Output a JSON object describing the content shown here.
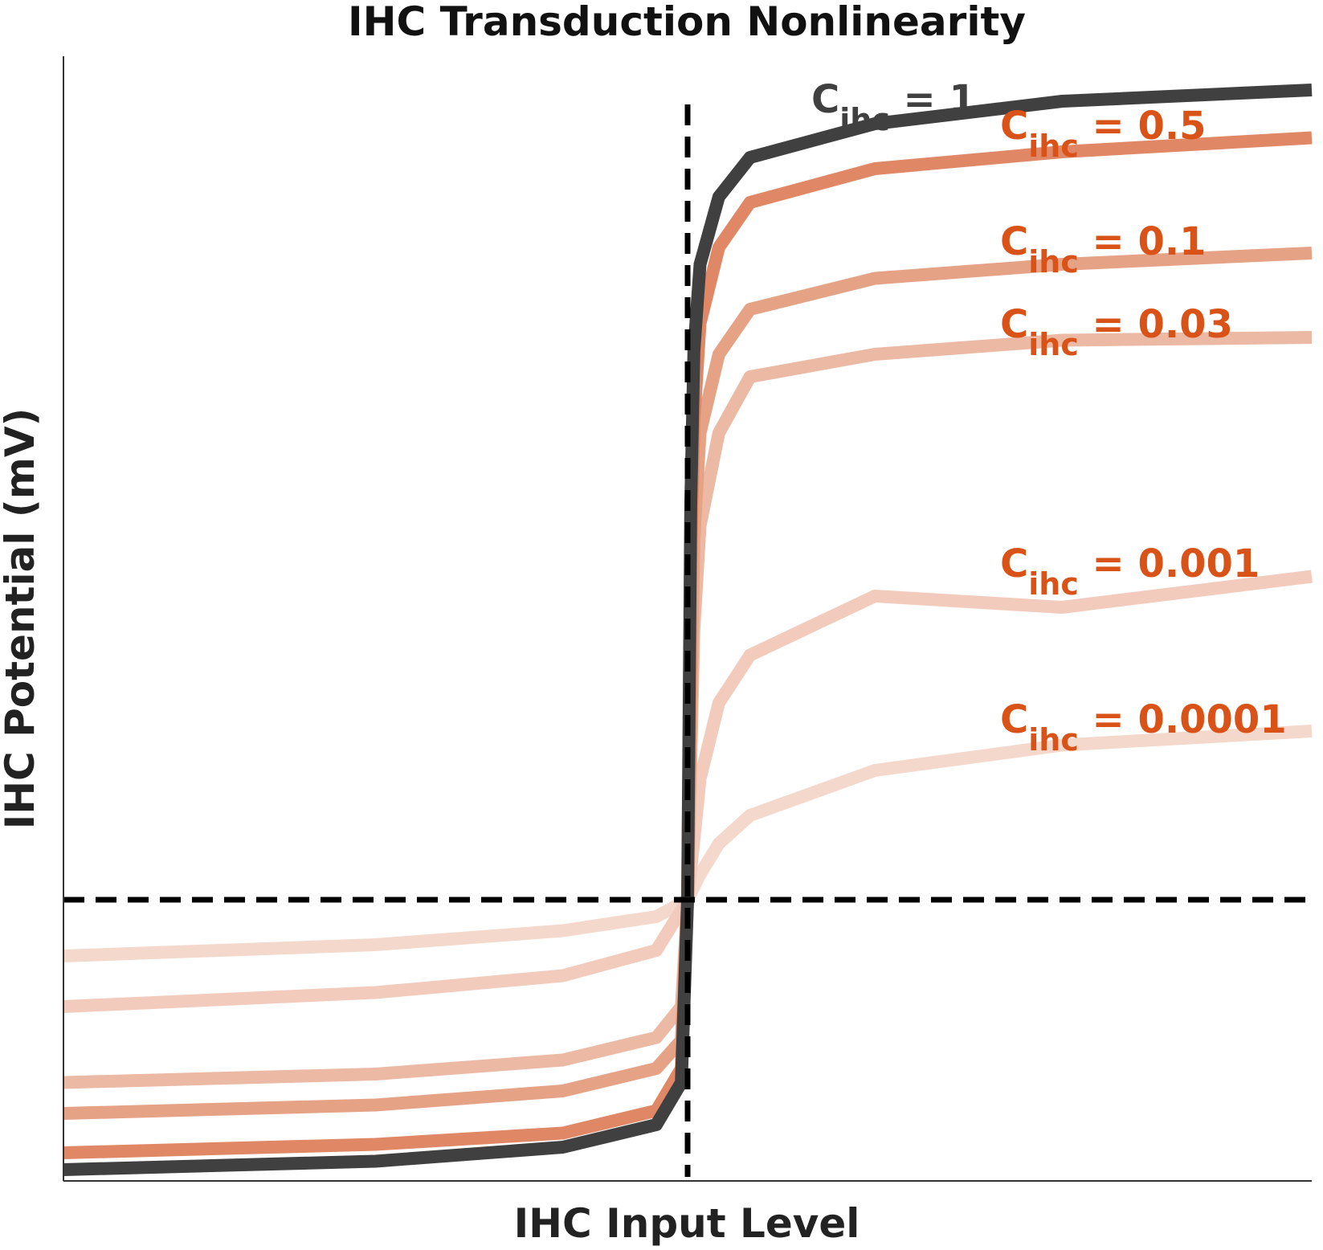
{
  "chart_data": {
    "type": "line",
    "title": "IHC Transduction Nonlinearity",
    "xlabel": "IHC Input Level",
    "ylabel": "IHC Potential (mV)",
    "xlim": [
      -1,
      1
    ],
    "ylim": [
      -1,
      3
    ],
    "x_ticks_shown": false,
    "y_ticks_shown": false,
    "grid": false,
    "reference_lines": [
      {
        "orientation": "vertical",
        "value": 0,
        "style": "dashed",
        "color": "#000000"
      },
      {
        "orientation": "horizontal",
        "value": 0,
        "style": "dashed",
        "color": "#000000"
      }
    ],
    "series": [
      {
        "label_main": "C",
        "label_sub": "ihc",
        "label_value": "= 0.0001",
        "color": "#f4d8cc",
        "label_color": "#d95319",
        "param": 0.0001,
        "x": [
          -1,
          -0.5,
          -0.2,
          -0.05,
          0,
          0.02,
          0.05,
          0.1,
          0.3,
          0.6,
          1
        ],
        "y": [
          -0.2,
          -0.16,
          -0.11,
          -0.06,
          0,
          0.09,
          0.2,
          0.3,
          0.46,
          0.55,
          0.6
        ]
      },
      {
        "label_main": "C",
        "label_sub": "ihc",
        "label_value": "= 0.001",
        "color": "#f2cbbd",
        "label_color": "#d95319",
        "param": 0.001,
        "x": [
          -1,
          -0.5,
          -0.2,
          -0.05,
          0,
          0.01,
          0.02,
          0.05,
          0.1,
          0.3,
          0.6,
          1
        ],
        "y": [
          -0.38,
          -0.33,
          -0.27,
          -0.18,
          0,
          0.21,
          0.43,
          0.7,
          0.87,
          1.08,
          1.04,
          1.15
        ]
      },
      {
        "label_main": "C",
        "label_sub": "ihc",
        "label_value": "= 0.03",
        "color": "#ebb9a4",
        "label_color": "#d95319",
        "param": 0.03,
        "x": [
          -1,
          -0.5,
          -0.2,
          -0.05,
          -0.01,
          0,
          0.01,
          0.02,
          0.05,
          0.1,
          0.3,
          0.6,
          1
        ],
        "y": [
          -0.65,
          -0.62,
          -0.57,
          -0.49,
          -0.38,
          0,
          0.96,
          1.33,
          1.66,
          1.86,
          1.94,
          1.99,
          2.0
        ]
      },
      {
        "label_main": "C",
        "label_sub": "ihc",
        "label_value": "= 0.1",
        "color": "#e6a285",
        "label_color": "#d95319",
        "param": 0.1,
        "x": [
          -1,
          -0.5,
          -0.2,
          -0.05,
          -0.01,
          0,
          0.01,
          0.02,
          0.05,
          0.1,
          0.3,
          0.6,
          1
        ],
        "y": [
          -0.76,
          -0.73,
          -0.68,
          -0.6,
          -0.5,
          0,
          1.28,
          1.66,
          1.94,
          2.1,
          2.21,
          2.26,
          2.3
        ]
      },
      {
        "label_main": "C",
        "label_sub": "ihc",
        "label_value": "= 0.5",
        "color": "#e08765",
        "label_color": "#d95319",
        "param": 0.5,
        "x": [
          -1,
          -0.5,
          -0.2,
          -0.05,
          -0.01,
          0,
          0.005,
          0.01,
          0.02,
          0.05,
          0.1,
          0.3,
          0.6,
          1
        ],
        "y": [
          -0.9,
          -0.87,
          -0.83,
          -0.75,
          -0.6,
          0,
          1.2,
          1.7,
          2.05,
          2.32,
          2.48,
          2.6,
          2.66,
          2.71
        ]
      },
      {
        "label_main": "C",
        "label_sub": "ihc",
        "label_value": "= 1",
        "color": "#404040",
        "label_color": "#404040",
        "param": 1,
        "x": [
          -1,
          -0.5,
          -0.2,
          -0.05,
          -0.01,
          0,
          0.005,
          0.01,
          0.02,
          0.05,
          0.1,
          0.3,
          0.6,
          1
        ],
        "y": [
          -0.96,
          -0.93,
          -0.88,
          -0.8,
          -0.65,
          0,
          1.4,
          1.95,
          2.26,
          2.5,
          2.64,
          2.76,
          2.84,
          2.88
        ]
      }
    ]
  }
}
